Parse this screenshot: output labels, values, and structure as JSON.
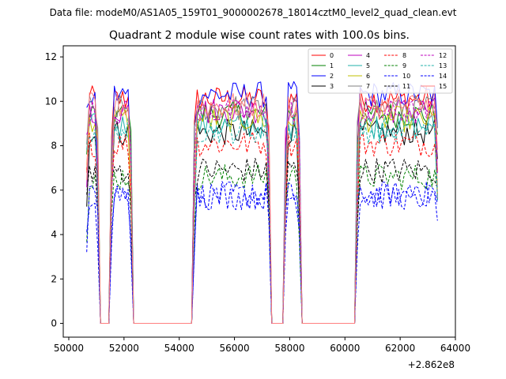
{
  "subtitle": "Data file: modeM0/AS1A05_159T01_9000002678_18014cztM0_level2_quad_clean.evt",
  "chart_data": {
    "type": "line",
    "title": "Quadrant 2 module wise count rates with 100.0s bins.",
    "xlabel": "",
    "ylabel": "",
    "x_offset_label": "+2.862e8",
    "xlim": [
      49800,
      64000
    ],
    "ylim": [
      -0.62,
      12.5
    ],
    "xticks": [
      50000,
      52000,
      54000,
      56000,
      58000,
      60000,
      62000,
      64000
    ],
    "yticks": [
      0,
      2,
      4,
      6,
      8,
      10,
      12
    ],
    "legend_position": "top-right",
    "segments": [
      [
        50650,
        51050
      ],
      [
        51550,
        52250
      ],
      [
        54550,
        57250
      ],
      [
        57850,
        58350
      ],
      [
        60450,
        63350
      ]
    ],
    "bin_width": 100,
    "series": [
      {
        "name": "0",
        "color": "#ff0000",
        "dash": "solid",
        "level": 10.1
      },
      {
        "name": "1",
        "color": "#008000",
        "dash": "solid",
        "level": 9.4
      },
      {
        "name": "2",
        "color": "#0000ff",
        "dash": "solid",
        "level": 10.3
      },
      {
        "name": "3",
        "color": "#000000",
        "dash": "solid",
        "level": 8.6
      },
      {
        "name": "4",
        "color": "#bf00bf",
        "dash": "solid",
        "level": 9.6
      },
      {
        "name": "5",
        "color": "#20b2aa",
        "dash": "solid",
        "level": 8.9
      },
      {
        "name": "6",
        "color": "#bfbf00",
        "dash": "solid",
        "level": 9.2
      },
      {
        "name": "7",
        "color": "#808080",
        "dash": "solid",
        "level": 9.7
      },
      {
        "name": "8",
        "color": "#ff0000",
        "dash": "dashed",
        "level": 8.1
      },
      {
        "name": "9",
        "color": "#008000",
        "dash": "dashed",
        "level": 6.6
      },
      {
        "name": "10",
        "color": "#0000ff",
        "dash": "dashed",
        "level": 5.8
      },
      {
        "name": "11",
        "color": "#000000",
        "dash": "dashed",
        "level": 6.9
      },
      {
        "name": "12",
        "color": "#bf00bf",
        "dash": "dashed",
        "level": 9.5
      },
      {
        "name": "13",
        "color": "#20b2aa",
        "dash": "dashed",
        "level": 8.7
      },
      {
        "name": "14",
        "color": "#0000ff",
        "dash": "dashed",
        "level": 5.7
      },
      {
        "name": "15",
        "color": "#ff7f7f",
        "dash": "solid",
        "level": 9.8
      }
    ]
  }
}
